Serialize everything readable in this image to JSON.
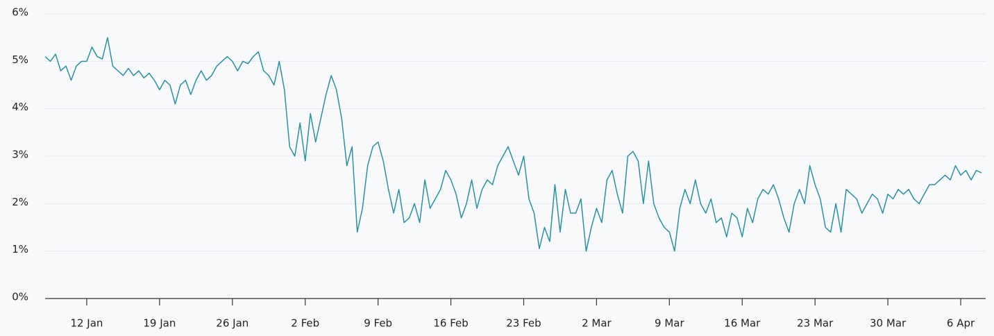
{
  "chart_data": {
    "type": "line",
    "color": "#2a8f9f",
    "grid": true,
    "x": [
      8,
      8.5,
      9,
      9.5,
      10,
      10.5,
      11,
      11.5,
      12,
      12.5,
      13,
      13.5,
      14,
      14.5,
      15,
      15.5,
      16,
      16.5,
      17,
      17.5,
      18,
      18.5,
      19,
      19.5,
      20,
      20.5,
      21,
      21.5,
      22,
      22.5,
      23,
      23.5,
      24,
      24.5,
      25,
      25.5,
      26,
      26.5,
      27,
      27.5,
      28,
      28.5,
      29,
      29.5,
      30,
      30.5,
      31,
      31.5,
      32,
      32.5,
      33,
      33.5,
      34,
      34.5,
      35,
      35.5,
      36,
      36.5,
      37,
      37.5,
      38,
      38.5,
      39,
      39.5,
      40,
      40.5,
      41,
      41.5,
      42,
      42.5,
      43,
      43.5,
      44,
      44.5,
      45,
      45.5,
      46,
      46.5,
      47,
      47.5,
      48,
      48.5,
      49,
      49.5,
      50,
      50.5,
      51,
      51.5,
      52,
      52.5,
      53,
      53.5,
      54,
      54.5,
      55,
      55.5,
      56,
      56.5,
      57,
      57.5,
      58,
      58.5,
      59,
      59.5,
      60,
      60.5,
      61,
      61.5,
      62,
      62.5,
      63,
      63.5,
      64,
      64.5,
      65,
      65.5,
      66,
      66.5,
      67,
      67.5,
      68,
      68.5,
      69,
      69.5,
      70,
      70.5,
      71,
      71.5,
      72,
      72.5,
      73,
      73.5,
      74,
      74.5,
      75,
      75.5,
      76,
      76.5,
      77,
      77.5,
      78,
      78.5,
      79,
      79.5,
      80,
      80.5,
      81,
      81.5,
      82,
      82.5,
      83,
      83.5,
      84,
      84.5,
      85,
      85.5,
      86,
      86.5,
      87,
      87.5,
      88,
      88.5,
      89,
      89.5,
      90,
      90.5,
      91,
      91.5,
      92,
      92.5,
      93,
      93.5,
      94,
      94.5,
      95,
      95.5,
      96,
      96.5,
      97,
      97.5,
      98
    ],
    "values": [
      5.1,
      5.0,
      5.15,
      4.8,
      4.9,
      4.6,
      4.9,
      5.0,
      5.0,
      5.3,
      5.1,
      5.05,
      5.5,
      4.9,
      4.8,
      4.7,
      4.85,
      4.7,
      4.8,
      4.65,
      4.75,
      4.6,
      4.4,
      4.6,
      4.5,
      4.1,
      4.5,
      4.6,
      4.3,
      4.6,
      4.8,
      4.6,
      4.7,
      4.9,
      5.0,
      5.1,
      5.0,
      4.8,
      5.0,
      4.95,
      5.1,
      5.2,
      4.8,
      4.7,
      4.5,
      5.0,
      4.4,
      3.2,
      3.0,
      3.7,
      2.9,
      3.9,
      3.3,
      3.8,
      4.3,
      4.7,
      4.4,
      3.8,
      2.8,
      3.2,
      1.4,
      1.9,
      2.8,
      3.2,
      3.3,
      2.9,
      2.3,
      1.8,
      2.3,
      1.6,
      1.7,
      2.0,
      1.6,
      2.5,
      1.9,
      2.1,
      2.3,
      2.7,
      2.5,
      2.2,
      1.7,
      2.0,
      2.5,
      1.9,
      2.3,
      2.5,
      2.4,
      2.8,
      3.0,
      3.2,
      2.9,
      2.6,
      3.0,
      2.1,
      1.8,
      1.05,
      1.5,
      1.2,
      2.4,
      1.4,
      2.3,
      1.8,
      1.8,
      2.1,
      1.0,
      1.5,
      1.9,
      1.6,
      2.5,
      2.7,
      2.2,
      1.8,
      3.0,
      3.1,
      2.9,
      2.0,
      2.9,
      2.0,
      1.7,
      1.5,
      1.4,
      1.0,
      1.9,
      2.3,
      2.0,
      2.5,
      2.0,
      1.8,
      2.1,
      1.6,
      1.7,
      1.3,
      1.8,
      1.7,
      1.3,
      1.9,
      1.6,
      2.1,
      2.3,
      2.2,
      2.4,
      2.1,
      1.7,
      1.4,
      2.0,
      2.3,
      2.0,
      2.8,
      2.4,
      2.1,
      1.5,
      1.4,
      2.0,
      1.4,
      2.3,
      2.2,
      2.1,
      1.8,
      2.0,
      2.2,
      2.1,
      1.8,
      2.2,
      2.1,
      2.3,
      2.2,
      2.3,
      2.1,
      2.0,
      2.2,
      2.4,
      2.4,
      2.5,
      2.6,
      2.5,
      2.8,
      2.6,
      2.7,
      2.5,
      2.7,
      2.65
    ],
    "xlim": [
      8,
      98.4
    ],
    "xticks": [
      {
        "value": 12,
        "label": "12 Jan"
      },
      {
        "value": 19,
        "label": "19 Jan"
      },
      {
        "value": 26,
        "label": "26 Jan"
      },
      {
        "value": 33,
        "label": "2 Feb"
      },
      {
        "value": 40,
        "label": "9 Feb"
      },
      {
        "value": 47,
        "label": "16 Feb"
      },
      {
        "value": 54,
        "label": "23 Feb"
      },
      {
        "value": 61,
        "label": "2 Mar"
      },
      {
        "value": 68,
        "label": "9 Mar"
      },
      {
        "value": 75,
        "label": "16 Mar"
      },
      {
        "value": 82,
        "label": "23 Mar"
      },
      {
        "value": 89,
        "label": "30 Mar"
      },
      {
        "value": 96,
        "label": "6 Apr"
      }
    ],
    "ylim": [
      0,
      6
    ],
    "yticks": [
      {
        "value": 0,
        "label": "0%"
      },
      {
        "value": 1,
        "label": "1%"
      },
      {
        "value": 2,
        "label": "2%"
      },
      {
        "value": 3,
        "label": "3%"
      },
      {
        "value": 4,
        "label": "4%"
      },
      {
        "value": 5,
        "label": "5%"
      },
      {
        "value": 6,
        "label": "6%"
      }
    ]
  }
}
